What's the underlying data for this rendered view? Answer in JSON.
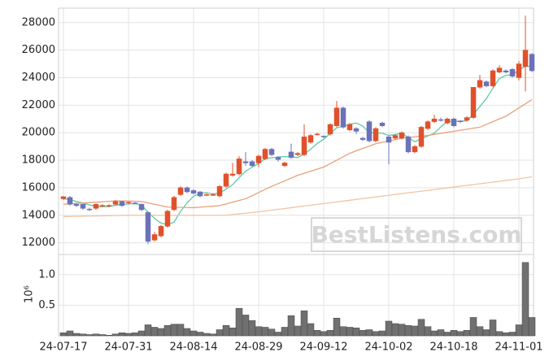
{
  "chart_data": [
    {
      "type": "candlestick",
      "categories": [
        "24-07-17",
        null,
        null,
        null,
        null,
        null,
        null,
        null,
        null,
        null,
        "24-07-31",
        null,
        null,
        null,
        null,
        null,
        null,
        null,
        null,
        null,
        "24-08-14",
        null,
        null,
        null,
        null,
        null,
        null,
        null,
        null,
        null,
        "24-08-29",
        null,
        null,
        null,
        null,
        null,
        null,
        null,
        null,
        null,
        "24-09-12",
        null,
        null,
        null,
        null,
        null,
        null,
        null,
        null,
        null,
        "24-10-02",
        null,
        null,
        null,
        null,
        null,
        null,
        null,
        null,
        null,
        "24-10-18",
        null,
        null,
        null,
        null,
        null,
        null,
        null,
        null,
        null,
        "24-11-01",
        null,
        null
      ],
      "open": [
        15200,
        15300,
        14800,
        14800,
        14450,
        14500,
        14700,
        14700,
        14800,
        15000,
        14900,
        14900,
        14800,
        14200,
        12200,
        12500,
        13200,
        14400,
        15500,
        16000,
        15800,
        15700,
        15450,
        15450,
        15400,
        16100,
        16900,
        17000,
        17900,
        17900,
        17800,
        18100,
        18800,
        18200,
        17600,
        18600,
        18400,
        18400,
        19300,
        19850,
        19750,
        19900,
        20500,
        21800,
        20200,
        20300,
        19600,
        20800,
        19400,
        20700,
        19700,
        19600,
        19600,
        19700,
        18600,
        19000,
        20300,
        20800,
        20950,
        20700,
        21000,
        20850,
        20900,
        21100,
        23300,
        23700,
        23400,
        24400,
        24500,
        24600,
        24000,
        24800,
        25700
      ],
      "high": [
        15400,
        15400,
        14900,
        14850,
        14550,
        14850,
        14800,
        14800,
        15100,
        15050,
        15000,
        14950,
        14850,
        14300,
        12800,
        13300,
        14400,
        15400,
        16100,
        16100,
        15900,
        15750,
        15600,
        15600,
        16200,
        17100,
        17800,
        18300,
        18600,
        18000,
        18400,
        18900,
        18900,
        18300,
        17900,
        19200,
        18600,
        20600,
        19900,
        20000,
        19800,
        20700,
        22300,
        21900,
        20700,
        20400,
        19700,
        20900,
        20400,
        20800,
        19800,
        19900,
        20100,
        19800,
        19100,
        20500,
        20900,
        21300,
        21100,
        21100,
        21100,
        20900,
        21200,
        23300,
        24200,
        23800,
        24600,
        24900,
        24600,
        24700,
        25200,
        28500,
        25800
      ],
      "low": [
        15100,
        14700,
        14600,
        14400,
        14300,
        14400,
        14600,
        14600,
        14700,
        14600,
        14800,
        14800,
        14300,
        11900,
        12100,
        12400,
        13100,
        14300,
        15400,
        15600,
        15500,
        15300,
        15400,
        15400,
        15300,
        16000,
        16800,
        16900,
        17600,
        17500,
        17500,
        18000,
        18300,
        17900,
        17500,
        18100,
        18300,
        18300,
        19200,
        19800,
        19600,
        19800,
        20400,
        20300,
        20100,
        19900,
        19400,
        19300,
        19300,
        20400,
        17700,
        19500,
        19500,
        18500,
        18500,
        18900,
        20200,
        20700,
        20800,
        20600,
        20400,
        20700,
        20800,
        21000,
        23200,
        23300,
        23300,
        24300,
        24300,
        24000,
        23800,
        23000,
        24400
      ],
      "close": [
        15350,
        14800,
        14700,
        14500,
        14400,
        14800,
        14720,
        14720,
        15000,
        14700,
        14950,
        14850,
        14400,
        12100,
        12600,
        13200,
        14300,
        15300,
        16000,
        15700,
        15600,
        15400,
        15500,
        15500,
        16100,
        17000,
        17000,
        18100,
        17800,
        17600,
        18300,
        18800,
        18400,
        18050,
        17800,
        18200,
        18500,
        19700,
        19800,
        19900,
        19700,
        20600,
        21800,
        20400,
        20600,
        20100,
        19500,
        19400,
        20300,
        20500,
        19300,
        19800,
        20000,
        18600,
        19000,
        20400,
        20800,
        21000,
        20900,
        21000,
        20500,
        20800,
        21100,
        23300,
        23800,
        23400,
        24500,
        24700,
        24400,
        24100,
        25000,
        26000,
        24500
      ],
      "up_color": "#e0512b",
      "down_color": "#6b72b8",
      "series": [
        {
          "color": "#5fc9a8",
          "values": [
            15200,
            15150,
            15000,
            14900,
            14750,
            14640,
            14624,
            14628,
            14728,
            14788,
            14818,
            14844,
            14780,
            14200,
            13780,
            13430,
            13320,
            13500,
            14280,
            14900,
            15380,
            15600,
            15640,
            15540,
            15620,
            15900,
            16220,
            16740,
            17200,
            17500,
            17760,
            18120,
            18180,
            18230,
            18270,
            18250,
            18190,
            18450,
            18800,
            19220,
            19520,
            19940,
            20360,
            20480,
            20620,
            20700,
            20480,
            20000,
            19980,
            19960,
            19800,
            19860,
            19980,
            19640,
            19340,
            19560,
            19760,
            19960,
            20420,
            20820,
            20840,
            20840,
            20860,
            21340,
            21900,
            22480,
            23220,
            23940,
            24160,
            24220,
            24540,
            24840,
            24800
          ]
        },
        {
          "color": "#e8a07a",
          "values": [
            14800,
            14830,
            14860,
            14890,
            14920,
            14950,
            14980,
            15010,
            15050,
            15040,
            15030,
            15020,
            15000,
            14900,
            14800,
            14700,
            14600,
            14590,
            14570,
            14560,
            14550,
            14590,
            14630,
            14660,
            14700,
            14820,
            14950,
            15080,
            15200,
            15420,
            15650,
            15880,
            16100,
            16300,
            16500,
            16700,
            16900,
            17050,
            17200,
            17350,
            17500,
            17750,
            18000,
            18250,
            18500,
            18680,
            18850,
            19020,
            19200,
            19300,
            19400,
            19500,
            19600,
            19650,
            19700,
            19750,
            19800,
            19880,
            19950,
            20030,
            20100,
            20180,
            20250,
            20330,
            20400,
            20600,
            20800,
            21000,
            21200,
            21500,
            21800,
            22100,
            22400
          ]
        },
        {
          "color": "#f0c4a4",
          "values": [
            13900,
            13910,
            13920,
            13930,
            13940,
            13950,
            13960,
            13970,
            13980,
            13990,
            14000,
            14000,
            14000,
            14000,
            14000,
            14000,
            14000,
            14000,
            14000,
            14000,
            14000,
            14000,
            14000,
            14000,
            14000,
            14000,
            14050,
            14100,
            14150,
            14200,
            14250,
            14310,
            14370,
            14430,
            14490,
            14550,
            14610,
            14670,
            14730,
            14790,
            14850,
            14910,
            14970,
            15030,
            15090,
            15150,
            15210,
            15270,
            15330,
            15390,
            15450,
            15510,
            15570,
            15630,
            15690,
            15750,
            15810,
            15870,
            15930,
            15990,
            16050,
            16110,
            16170,
            16230,
            16290,
            16350,
            16410,
            16470,
            16530,
            16590,
            16650,
            16720,
            16800
          ]
        }
      ],
      "ylim": [
        11150,
        29050
      ],
      "yticks": [
        12000,
        14000,
        16000,
        18000,
        20000,
        22000,
        24000,
        26000,
        28000
      ],
      "grid": true,
      "watermark": "BestListens.com"
    },
    {
      "type": "bar",
      "ylabel": "10⁶",
      "color": "#707070",
      "values": [
        0.05,
        0.08,
        0.04,
        0.03,
        0.02,
        0.03,
        0.02,
        0.01,
        0.03,
        0.05,
        0.04,
        0.05,
        0.08,
        0.18,
        0.14,
        0.12,
        0.17,
        0.19,
        0.19,
        0.12,
        0.08,
        0.06,
        0.04,
        0.03,
        0.1,
        0.17,
        0.13,
        0.45,
        0.34,
        0.25,
        0.15,
        0.14,
        0.11,
        0.06,
        0.14,
        0.33,
        0.16,
        0.41,
        0.2,
        0.09,
        0.07,
        0.09,
        0.29,
        0.15,
        0.14,
        0.13,
        0.09,
        0.1,
        0.07,
        0.08,
        0.24,
        0.2,
        0.19,
        0.17,
        0.16,
        0.27,
        0.15,
        0.08,
        0.1,
        0.06,
        0.09,
        0.07,
        0.09,
        0.3,
        0.15,
        0.1,
        0.26,
        0.07,
        0.05,
        0.06,
        0.18,
        1.2,
        0.3
      ],
      "ylim": [
        0,
        1.33
      ],
      "yticks": [
        0.5,
        {
          "value": 1,
          "label": "1.0"
        }
      ],
      "grid": true
    }
  ]
}
